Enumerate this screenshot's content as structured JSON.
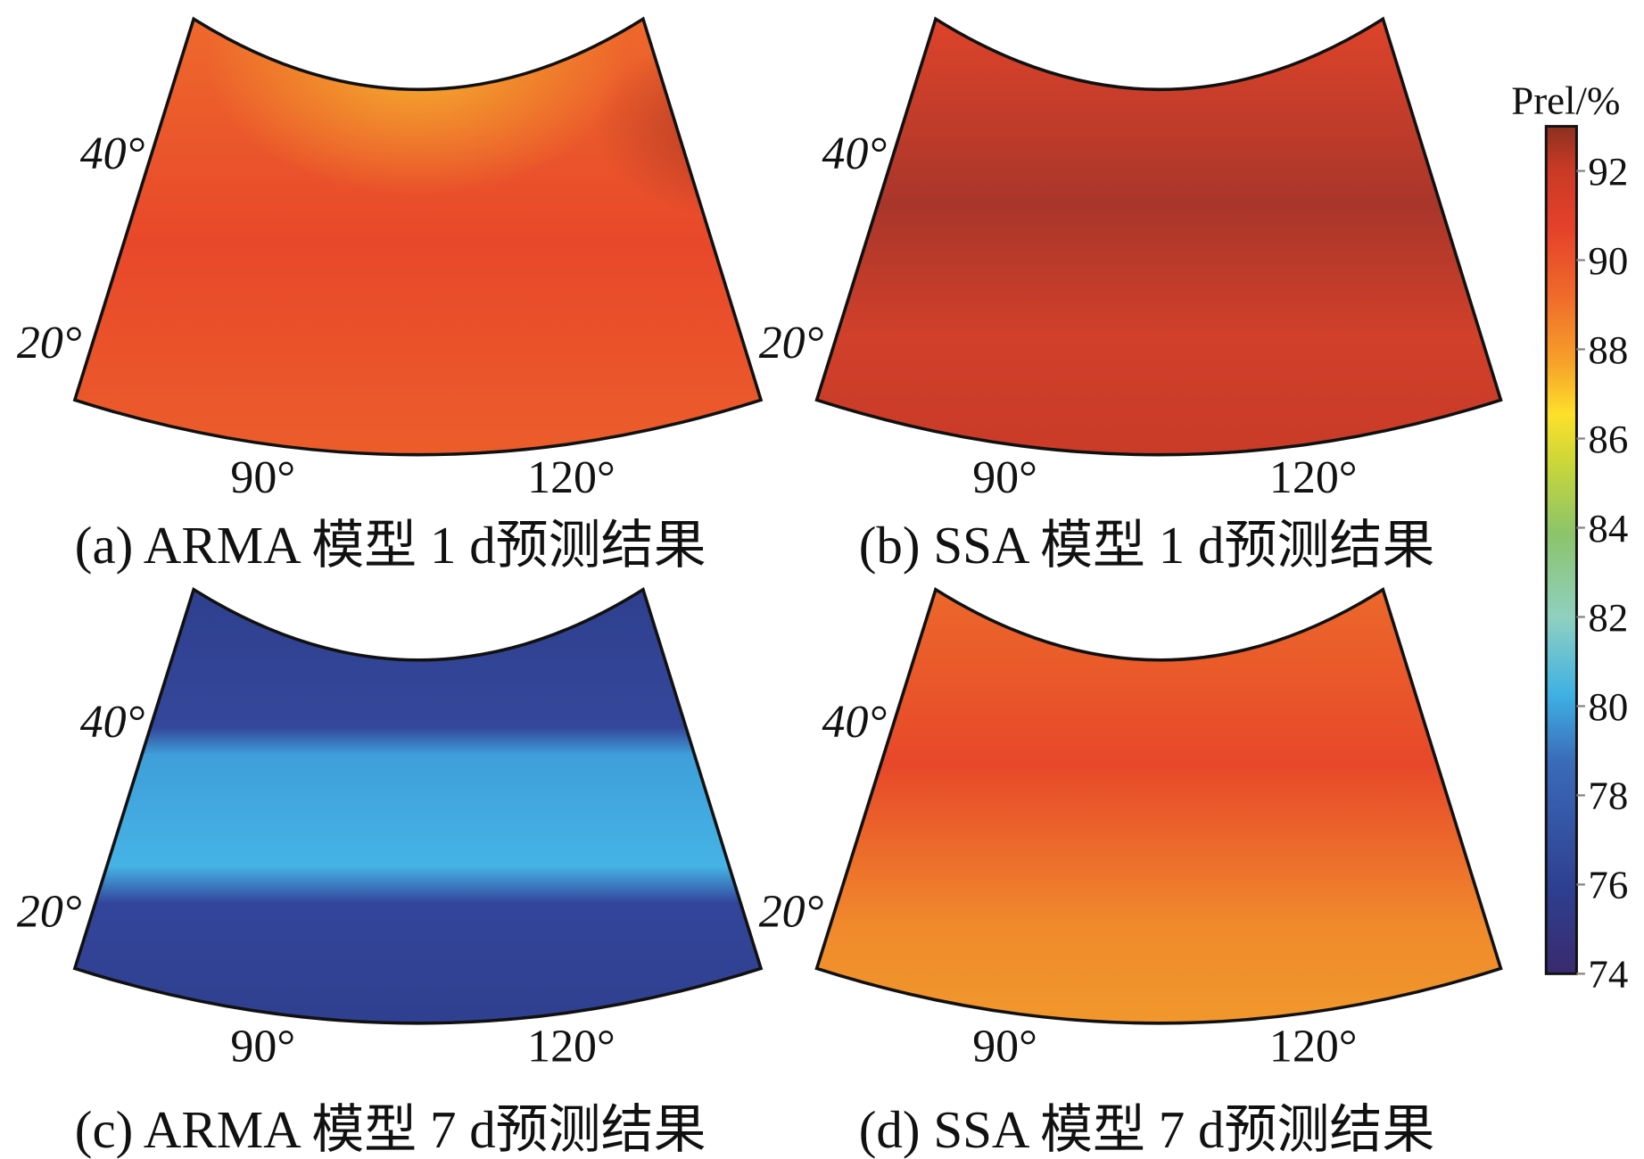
{
  "colorbar": {
    "title": "Prel/%",
    "ticks": [
      "92",
      "90",
      "88",
      "86",
      "84",
      "82",
      "80",
      "78",
      "76",
      "74"
    ],
    "range": [
      74,
      93
    ],
    "colors": [
      "#3a2a6e",
      "#2e3f8f",
      "#3a6bb8",
      "#3fb1e3",
      "#8fd0c0",
      "#8cc46a",
      "#c8d63a",
      "#fde02a",
      "#f7a22a",
      "#ef6a2a",
      "#e5412a",
      "#c83a25",
      "#8c3020"
    ]
  },
  "panels": [
    {
      "id": "a",
      "caption": "(a) ARMA 模型 1 d预测结果",
      "lat_labels": [
        "40°",
        "20°"
      ],
      "lon_labels": [
        "90°",
        "120°"
      ],
      "mean_value": 89.5
    },
    {
      "id": "b",
      "caption": "(b) SSA 模型 1 d预测结果",
      "lat_labels": [
        "40°",
        "20°"
      ],
      "lon_labels": [
        "90°",
        "120°"
      ],
      "mean_value": 91
    },
    {
      "id": "c",
      "caption": "(c) ARMA 模型 7 d预测结果",
      "lat_labels": [
        "40°",
        "20°"
      ],
      "lon_labels": [
        "90°",
        "120°"
      ],
      "mean_value": 77
    },
    {
      "id": "d",
      "caption": "(d) SSA 模型 7 d预测结果",
      "lat_labels": [
        "40°",
        "20°"
      ],
      "lon_labels": [
        "90°",
        "120°"
      ],
      "mean_value": 89
    }
  ]
}
